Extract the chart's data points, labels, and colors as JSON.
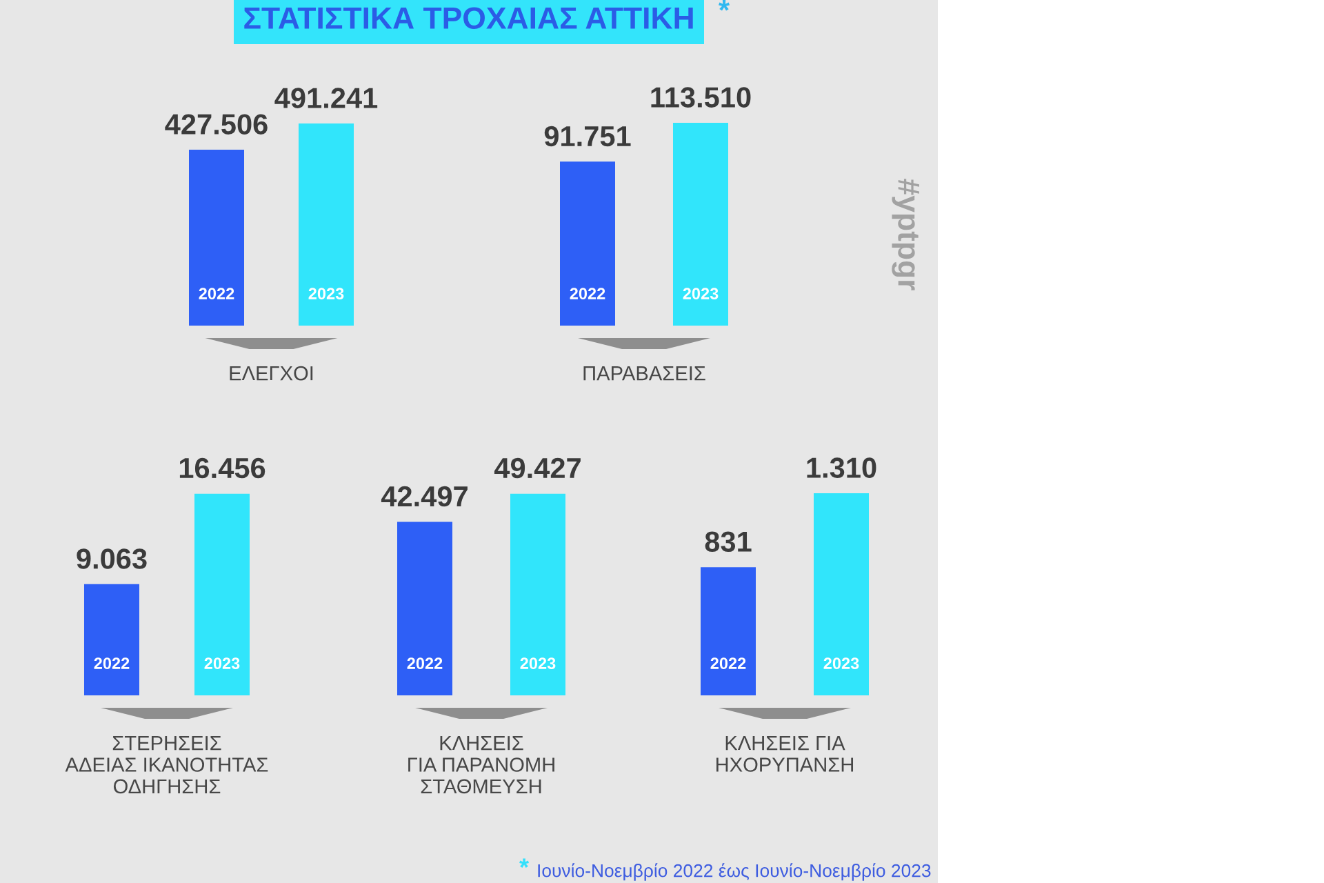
{
  "chart_data": [
    {
      "type": "bar",
      "title": "ΣΤΑΤΙΣΤΙΚΑ ΤΡΟΧΑΙΑΣ ΑΤΤΙΚΗ",
      "annotations": [
        "*"
      ],
      "xlabel": "ΕΛΕΓΧΟΙ",
      "categories": [
        "2022",
        "2023"
      ],
      "values": [
        427506,
        491241
      ],
      "colors": [
        "#2e5ff6",
        "#31e5fb"
      ],
      "value_labels": [
        "427.506",
        "491.241"
      ],
      "tick_labels": "x"
    },
    {
      "type": "bar",
      "annotations": [
        "#yptpgr"
      ],
      "xlabel": "ΠΑΡΑΒΑΣΕΙΣ",
      "categories": [
        "2022",
        "2023"
      ],
      "values": [
        91751,
        113510
      ],
      "colors": [
        "#2e5ff6",
        "#31e5fb"
      ],
      "value_labels": [
        "91.751",
        "113.510"
      ],
      "tick_labels": "x"
    },
    {
      "type": "bar",
      "xlabel": "ΣΤΕΡΗΣΕΙΣ\nΑΔΕΙΑΣ ΙΚΑΝΟΤΗΤΑΣ\nΟΔΗΓΗΣΗΣ",
      "categories": [
        "2022",
        "2023"
      ],
      "values": [
        9063,
        16456
      ],
      "colors": [
        "#2e5ff6",
        "#31e5fb"
      ],
      "value_labels": [
        "9.063",
        "16.456"
      ],
      "tick_labels": "x"
    },
    {
      "type": "bar",
      "xlabel": "ΚΛΗΣΕΙΣ\nΓΙΑ ΠΑΡΑΝΟΜΗ\nΣΤΑΘΜΕΥΣΗ",
      "categories": [
        "2022",
        "2023"
      ],
      "values": [
        42497,
        49427
      ],
      "colors": [
        "#2e5ff6",
        "#31e5fb"
      ],
      "value_labels": [
        "42.497",
        "49.427"
      ],
      "tick_labels": "x"
    },
    {
      "type": "bar",
      "xlabel": "ΚΛΗΣΕΙΣ ΓΙΑ\nΗΧΟΡΥΠΑΝΣΗ",
      "categories": [
        "2022",
        "2023"
      ],
      "values": [
        831,
        1310
      ],
      "colors": [
        "#2e5ff6",
        "#31e5fb"
      ],
      "value_labels": [
        "831",
        "1.310"
      ],
      "tick_labels": "x",
      "annotations": [
        "*",
        "Ιουνίο-Νοεμβρίο 2022 έως Ιουνίο-Νοεμβρίο 2023"
      ]
    }
  ]
}
